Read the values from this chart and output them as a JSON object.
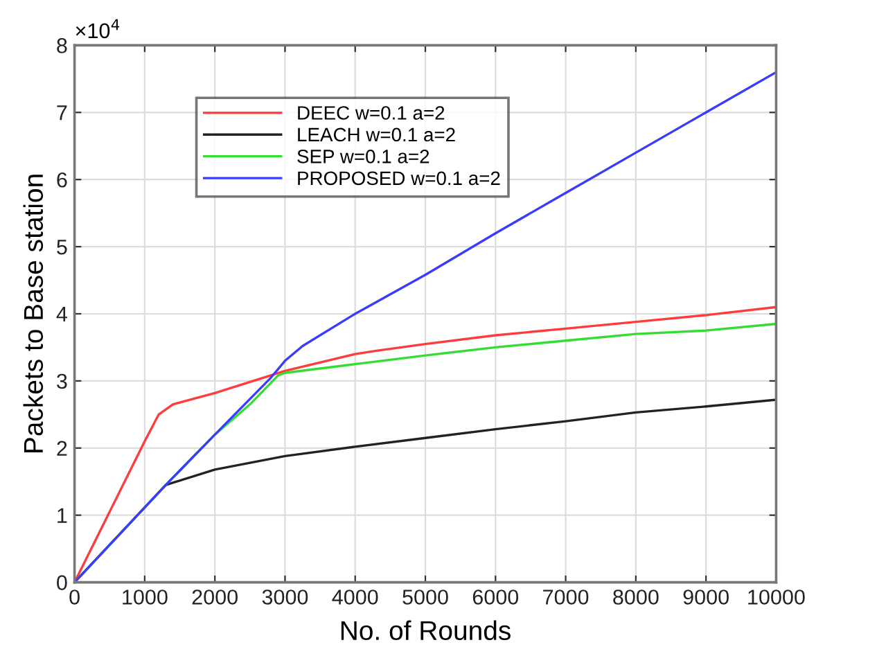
{
  "chart_data": {
    "type": "line",
    "xlabel": "No. of Rounds",
    "ylabel": "Packets to Base station",
    "annotations": [
      "×10$^{4}$"
    ],
    "xlim": [
      0,
      10000
    ],
    "xticks": [
      0,
      1000,
      2000,
      3000,
      4000,
      5000,
      6000,
      7000,
      8000,
      9000,
      10000
    ],
    "ylim": [
      0,
      8
    ],
    "yticks": [
      0,
      1,
      2,
      3,
      4,
      5,
      6,
      7,
      8
    ],
    "grid": true,
    "legend": "top left",
    "line_style": "solid",
    "marker": "none",
    "series": [
      {
        "name": "DEEC w=0.1 a=2",
        "color": "#ff3b3b",
        "x": [
          0,
          1000,
          1200,
          1400,
          2000,
          3000,
          4000,
          4300,
          5000,
          6000,
          7000,
          8000,
          9000,
          10000
        ],
        "values": [
          0,
          2.1,
          2.5,
          2.65,
          2.82,
          3.15,
          3.4,
          3.45,
          3.55,
          3.68,
          3.78,
          3.88,
          3.98,
          4.1
        ]
      },
      {
        "name": "LEACH w=0.1 a=2",
        "color": "#222222",
        "x": [
          0,
          1300,
          2000,
          3000,
          4000,
          5000,
          6000,
          7000,
          8000,
          9000,
          10000
        ],
        "values": [
          0,
          1.45,
          1.68,
          1.88,
          2.02,
          2.15,
          2.28,
          2.4,
          2.53,
          2.62,
          2.72
        ]
      },
      {
        "name": "SEP w=0.1 a=2",
        "color": "#33dd33",
        "x": [
          0,
          1300,
          2000,
          2500,
          2900,
          3000,
          4000,
          5000,
          6000,
          7000,
          8000,
          9000,
          10000
        ],
        "values": [
          0,
          1.45,
          2.2,
          2.65,
          3.08,
          3.12,
          3.25,
          3.38,
          3.5,
          3.6,
          3.7,
          3.75,
          3.85
        ]
      },
      {
        "name": "PROPOSED w=0.1 a=2",
        "color": "#3b3bff",
        "x": [
          0,
          1300,
          2000,
          2800,
          3000,
          3250,
          4000,
          5000,
          6000,
          7000,
          8000,
          9000,
          10000
        ],
        "values": [
          0,
          1.45,
          2.2,
          3.05,
          3.3,
          3.52,
          4.0,
          4.58,
          5.2,
          5.8,
          6.4,
          7.0,
          7.6
        ]
      }
    ]
  }
}
